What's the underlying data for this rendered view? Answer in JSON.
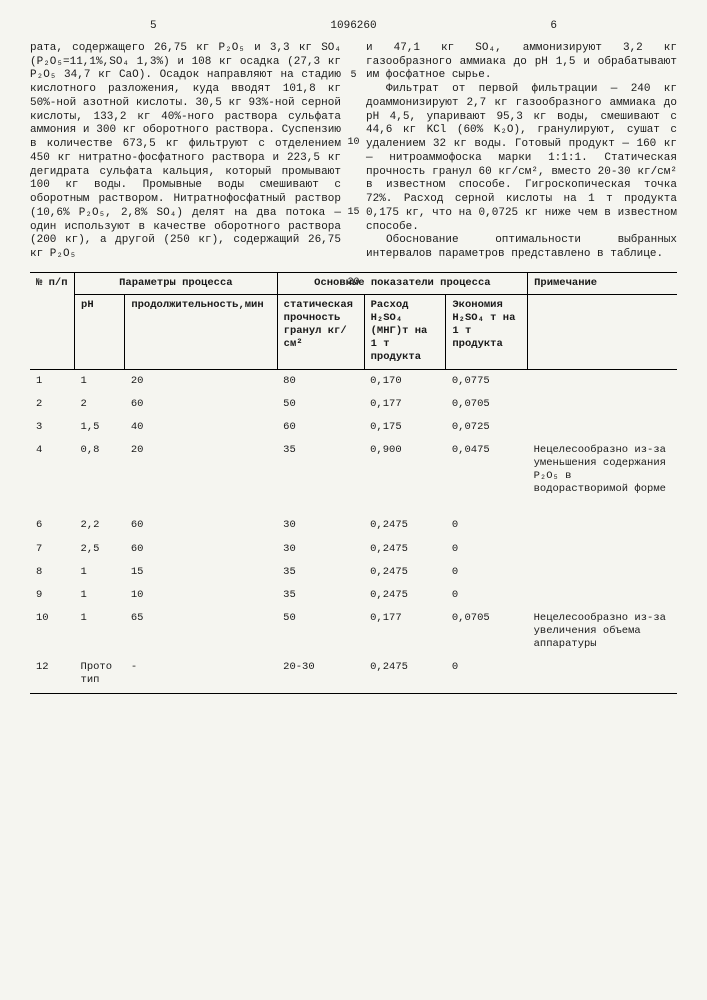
{
  "header": {
    "page_left": "5",
    "doc_num": "1096260",
    "page_right": "6"
  },
  "col_left": "рата, содержащего 26,75 кг P₂O₅ и 3,3 кг SO₄ (P₂O₅=11,1%,SO₄ 1,3%) и 108 кг осадка (27,3 кг P₂O₅ 34,7 кг CaO). Осадок направляют на стадию кислотного разложения, куда вводят 101,8 кг 50%-ной азотной кислоты. 30,5 кг 93%-ной серной кислоты, 133,2 кг 40%-ного раствора сульфата аммония и 300 кг оборотного раствора. Суспензию в количестве 673,5 кг фильтруют с отделением 450 кг нитратно-фосфатного раствора и 223,5 кг дегидрата сульфата кальция, который промывают 100 кг воды. Промывные воды смешивают с оборотным раствором. Нитратнофосфатный раствор (10,6% P₂O₅, 2,8% SO₄) делят на два потока — один используют в качестве оборотного раствора (200 кг), а другой (250 кг), содержащий 26,75 кг P₂O₅",
  "col_right": "и 47,1 кг SO₄, аммонизируют 3,2 кг газообразного аммиака до pH 1,5 и обрабатывают им фосфатное сырье.\nФильтрат от первой фильтрации — 240 кг доаммонизируют 2,7 кг газообразного аммиака до pH 4,5, упаривают 95,3 кг воды, смешивают с 44,6 кг KCl (60% K₂O), гранулируют, сушат с удалением 32 кг воды. Готовый продукт — 160 кг — нитроаммофоска марки 1:1:1. Статическая прочность гранул 60 кг/см², вместо 20-30 кг/см² в известном способе. Гигроскопическая точка 72%. Расход серной кислоты на 1 т продукта 0,175 кг, что на 0,0725 кг ниже чем в известном способе.\nОбоснование оптимальности выбранных интервалов параметров представлено в таблице.",
  "line_markers": [
    "5",
    "10",
    "15",
    "20"
  ],
  "table": {
    "group_headers": [
      "№ п/п",
      "Параметры процесса",
      "Основные показатели процесса",
      "Примечание"
    ],
    "col_headers": [
      "",
      "pH",
      "продолжительность,мин",
      "статическая прочность гранул кг/см²",
      "Расход H₂SO₄ (МНГ)т на 1 т продукта",
      "Экономия H₂SO₄ т на 1 т продукта",
      ""
    ],
    "rows": [
      [
        "1",
        "1",
        "20",
        "80",
        "0,170",
        "0,0775",
        ""
      ],
      [
        "2",
        "2",
        "60",
        "50",
        "0,177",
        "0,0705",
        ""
      ],
      [
        "3",
        "1,5",
        "40",
        "60",
        "0,175",
        "0,0725",
        ""
      ],
      [
        "4",
        "0,8",
        "20",
        "35",
        "0,900",
        "0,0475",
        "Нецелесообразно из-за уменьшения содержания P₂O₅ в водорастворимой форме"
      ],
      [
        "6",
        "2,2",
        "60",
        "30",
        "0,2475",
        "0",
        ""
      ],
      [
        "7",
        "2,5",
        "60",
        "30",
        "0,2475",
        "0",
        ""
      ],
      [
        "8",
        "1",
        "15",
        "35",
        "0,2475",
        "0",
        ""
      ],
      [
        "9",
        "1",
        "10",
        "35",
        "0,2475",
        "0",
        ""
      ],
      [
        "10",
        "1",
        "65",
        "50",
        "0,177",
        "0,0705",
        "Нецелесообразно из-за увеличения объема аппаратуры"
      ],
      [
        "12",
        "Прото тип",
        "-",
        "20-30",
        "0,2475",
        "0",
        ""
      ]
    ]
  }
}
